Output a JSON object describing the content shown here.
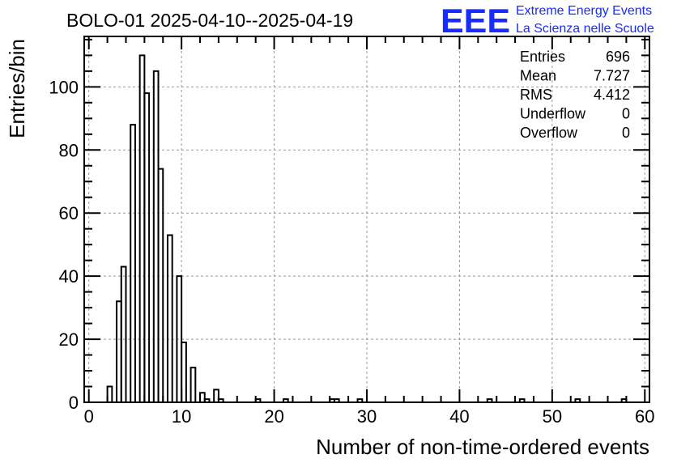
{
  "title": "BOLO-01 2025-04-10--2025-04-19",
  "logo": {
    "mark": "EEE",
    "line1": "Extreme Energy Events",
    "line2": "La Scienza nelle Scuole",
    "color": "#1a2bff"
  },
  "stats": [
    {
      "label": "Entries",
      "value": "696"
    },
    {
      "label": "Mean",
      "value": "7.727"
    },
    {
      "label": "RMS",
      "value": "4.412"
    },
    {
      "label": "Underflow",
      "value": "0"
    },
    {
      "label": "Overflow",
      "value": "0"
    }
  ],
  "chart_data": {
    "type": "bar",
    "style": "step-histogram",
    "xlabel": "Number of non-time-ordered events",
    "ylabel": "Entries/bin",
    "xlim": [
      -0.5,
      60.5
    ],
    "ylim": [
      0,
      116
    ],
    "xticks": [
      0,
      10,
      20,
      30,
      40,
      50,
      60
    ],
    "yticks": [
      0,
      20,
      40,
      60,
      80,
      100
    ],
    "grid": true,
    "bin_width": 0.5,
    "bins": [
      {
        "x0": 1.5,
        "y": 0
      },
      {
        "x0": 2.0,
        "y": 5
      },
      {
        "x0": 2.5,
        "y": 0
      },
      {
        "x0": 3.0,
        "y": 32
      },
      {
        "x0": 3.5,
        "y": 43
      },
      {
        "x0": 4.0,
        "y": 0
      },
      {
        "x0": 4.5,
        "y": 88
      },
      {
        "x0": 5.0,
        "y": 0
      },
      {
        "x0": 5.5,
        "y": 110
      },
      {
        "x0": 6.0,
        "y": 98
      },
      {
        "x0": 6.5,
        "y": 0
      },
      {
        "x0": 7.0,
        "y": 105
      },
      {
        "x0": 7.5,
        "y": 74
      },
      {
        "x0": 8.0,
        "y": 0
      },
      {
        "x0": 8.5,
        "y": 53
      },
      {
        "x0": 9.0,
        "y": 0
      },
      {
        "x0": 9.5,
        "y": 40
      },
      {
        "x0": 10.0,
        "y": 19
      },
      {
        "x0": 10.5,
        "y": 0
      },
      {
        "x0": 11.0,
        "y": 11
      },
      {
        "x0": 11.5,
        "y": 0
      },
      {
        "x0": 12.0,
        "y": 3
      },
      {
        "x0": 12.5,
        "y": 1
      },
      {
        "x0": 13.0,
        "y": 0
      },
      {
        "x0": 13.5,
        "y": 4
      },
      {
        "x0": 14.0,
        "y": 1
      },
      {
        "x0": 14.5,
        "y": 0
      },
      {
        "x0": 18.0,
        "y": 1
      },
      {
        "x0": 18.5,
        "y": 0
      },
      {
        "x0": 21.0,
        "y": 1
      },
      {
        "x0": 21.5,
        "y": 0
      },
      {
        "x0": 26.0,
        "y": 1
      },
      {
        "x0": 26.5,
        "y": 1
      },
      {
        "x0": 27.0,
        "y": 0
      },
      {
        "x0": 29.0,
        "y": 1
      },
      {
        "x0": 29.5,
        "y": 0
      },
      {
        "x0": 43.0,
        "y": 1
      },
      {
        "x0": 43.5,
        "y": 0
      },
      {
        "x0": 46.5,
        "y": 1
      },
      {
        "x0": 47.0,
        "y": 0
      },
      {
        "x0": 52.5,
        "y": 1
      },
      {
        "x0": 53.0,
        "y": 0
      },
      {
        "x0": 57.5,
        "y": 1
      },
      {
        "x0": 58.0,
        "y": 0
      }
    ]
  }
}
